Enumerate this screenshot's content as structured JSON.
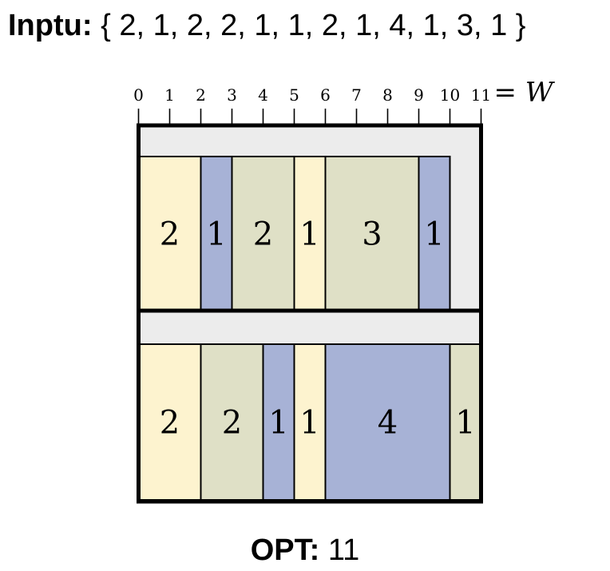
{
  "input": {
    "label": "Inptu:",
    "values_text": "{ 2, 1, 2, 2, 1, 1, 2, 1, 4, 1, 3, 1 }"
  },
  "opt": {
    "label": "OPT:",
    "value": "11"
  },
  "ruler": {
    "ticks": [
      "0",
      "1",
      "2",
      "3",
      "4",
      "5",
      "6",
      "7",
      "8",
      "9",
      "10",
      "11"
    ],
    "end_label": "= W"
  },
  "bins": [
    {
      "items": [
        {
          "size": 2,
          "label": "2",
          "color": "#fdf3cf"
        },
        {
          "size": 1,
          "label": "1",
          "color": "#a7b2d6"
        },
        {
          "size": 2,
          "label": "2",
          "color": "#dfe0c6"
        },
        {
          "size": 1,
          "label": "1",
          "color": "#fdf3cf"
        },
        {
          "size": 3,
          "label": "3",
          "color": "#dfe0c6"
        },
        {
          "size": 1,
          "label": "1",
          "color": "#a7b2d6"
        }
      ]
    },
    {
      "items": [
        {
          "size": 2,
          "label": "2",
          "color": "#fdf3cf"
        },
        {
          "size": 2,
          "label": "2",
          "color": "#dfe0c6"
        },
        {
          "size": 1,
          "label": "1",
          "color": "#a7b2d6"
        },
        {
          "size": 1,
          "label": "1",
          "color": "#fdf3cf"
        },
        {
          "size": 4,
          "label": "4",
          "color": "#a7b2d6"
        },
        {
          "size": 1,
          "label": "1",
          "color": "#dfe0c6"
        }
      ]
    }
  ],
  "colors": {
    "bin_background": "#ececec",
    "outline": "#000000"
  }
}
